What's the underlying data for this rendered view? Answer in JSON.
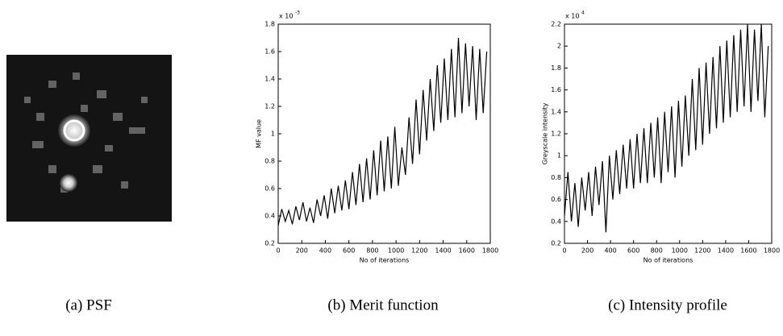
{
  "image_caption": "(a) PSF",
  "chart_data": [
    {
      "type": "line",
      "caption": "(b) Merit function",
      "xlabel": "No of iterations",
      "ylabel": "MF value",
      "multiplier": "x 10",
      "exponent": "-3",
      "color": "#000000",
      "xlim": [
        0,
        1800
      ],
      "ylim": [
        0.2,
        1.8
      ],
      "xticks": [
        0,
        200,
        400,
        600,
        800,
        1000,
        1200,
        1400,
        1600,
        1800
      ],
      "yticks": [
        0.2,
        0.4,
        0.6,
        0.8,
        1,
        1.2,
        1.4,
        1.6,
        1.8
      ],
      "x": [
        0,
        30,
        60,
        90,
        120,
        150,
        180,
        210,
        240,
        270,
        300,
        330,
        360,
        390,
        420,
        450,
        480,
        510,
        540,
        570,
        600,
        630,
        660,
        690,
        720,
        750,
        780,
        810,
        840,
        870,
        900,
        930,
        960,
        990,
        1020,
        1050,
        1080,
        1110,
        1140,
        1170,
        1200,
        1230,
        1260,
        1290,
        1320,
        1350,
        1380,
        1410,
        1440,
        1470,
        1500,
        1530,
        1560,
        1590,
        1620,
        1650,
        1680,
        1710,
        1740,
        1770
      ],
      "values": [
        0.33,
        0.45,
        0.36,
        0.44,
        0.34,
        0.47,
        0.37,
        0.5,
        0.36,
        0.46,
        0.35,
        0.52,
        0.4,
        0.55,
        0.38,
        0.6,
        0.42,
        0.62,
        0.44,
        0.66,
        0.45,
        0.72,
        0.48,
        0.78,
        0.5,
        0.82,
        0.52,
        0.88,
        0.55,
        0.95,
        0.58,
        0.98,
        0.6,
        1.05,
        0.62,
        0.9,
        0.7,
        1.12,
        0.78,
        1.25,
        0.85,
        1.32,
        0.95,
        1.4,
        1.02,
        1.5,
        1.08,
        1.55,
        1.1,
        1.62,
        1.12,
        1.7,
        1.15,
        1.66,
        1.2,
        1.64,
        1.1,
        1.62,
        1.15,
        1.6
      ]
    },
    {
      "type": "line",
      "caption": "(c) Intensity profile",
      "xlabel": "No of iterations",
      "ylabel": "Greyscale intensity",
      "multiplier": "x 10",
      "exponent": "4",
      "color": "#000000",
      "xlim": [
        0,
        1800
      ],
      "ylim": [
        0.2,
        2.2
      ],
      "xticks": [
        0,
        200,
        400,
        600,
        800,
        1000,
        1200,
        1400,
        1600,
        1800
      ],
      "yticks": [
        0.2,
        0.4,
        0.6,
        0.8,
        1,
        1.2,
        1.4,
        1.6,
        1.8,
        2,
        2.2
      ],
      "x": [
        0,
        30,
        60,
        90,
        120,
        150,
        180,
        210,
        240,
        270,
        300,
        330,
        360,
        390,
        420,
        450,
        480,
        510,
        540,
        570,
        600,
        630,
        660,
        690,
        720,
        750,
        780,
        810,
        840,
        870,
        900,
        930,
        960,
        990,
        1020,
        1050,
        1080,
        1110,
        1140,
        1170,
        1200,
        1230,
        1260,
        1290,
        1320,
        1350,
        1380,
        1410,
        1440,
        1470,
        1500,
        1530,
        1560,
        1590,
        1620,
        1650,
        1680,
        1710,
        1740,
        1770
      ],
      "values": [
        0.45,
        0.85,
        0.4,
        0.75,
        0.35,
        0.8,
        0.5,
        0.85,
        0.45,
        0.9,
        0.55,
        0.95,
        0.3,
        1.0,
        0.6,
        1.05,
        0.65,
        1.1,
        0.7,
        1.15,
        0.7,
        1.2,
        0.75,
        1.25,
        0.75,
        1.3,
        0.8,
        1.35,
        0.75,
        1.4,
        0.85,
        1.45,
        0.8,
        1.5,
        0.9,
        1.55,
        1.0,
        1.7,
        1.05,
        1.8,
        1.1,
        1.85,
        1.2,
        1.9,
        1.25,
        2.0,
        1.3,
        2.05,
        1.35,
        2.1,
        1.4,
        2.15,
        1.45,
        2.2,
        1.4,
        2.15,
        1.5,
        2.2,
        1.35,
        2.0
      ]
    }
  ]
}
